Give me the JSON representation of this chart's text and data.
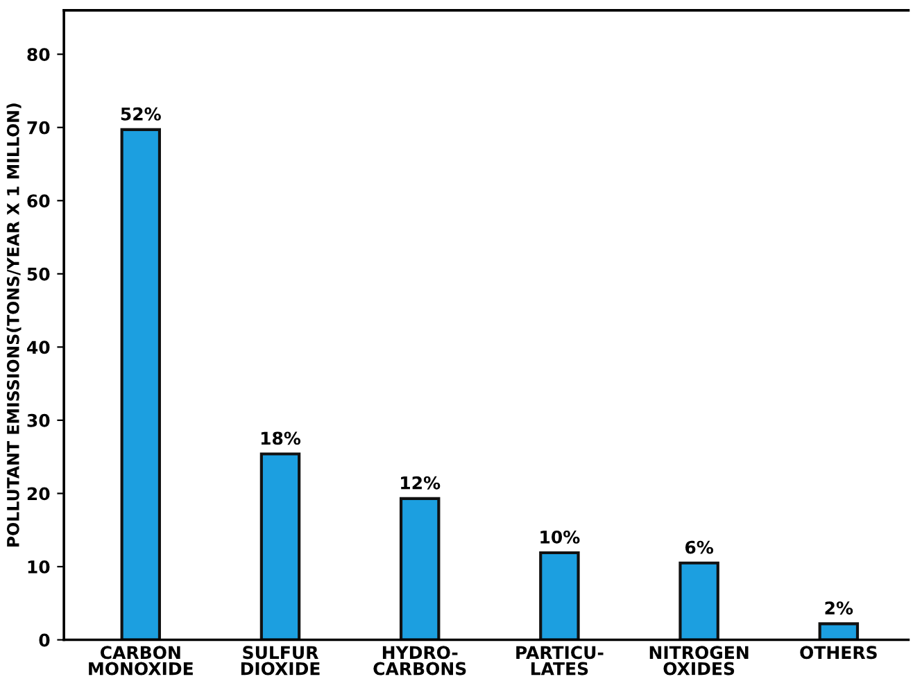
{
  "chart_data": {
    "type": "bar",
    "ylabel": "POLLUTANT EMISSIONS(TONS/YEAR X 1 MILLON)",
    "categories": [
      "CARBON\nMONOXIDE",
      "SULFUR\nDIOXIDE",
      "HYDRO-\nCARBONS",
      "PARTICU-\nLATES",
      "NITROGEN\nOXIDES",
      "OTHERS"
    ],
    "values": [
      69.7,
      25.4,
      19.3,
      11.9,
      10.5,
      2.2
    ],
    "annotations": [
      {
        "text": "52%",
        "x": "CARBON\nMONOXIDE",
        "y": 69.7
      },
      {
        "text": "18%",
        "x": "SULFUR\nDIOXIDE",
        "y": 25.4
      },
      {
        "text": "12%",
        "x": "HYDRO-\nCARBONS",
        "y": 19.3
      },
      {
        "text": "10%",
        "x": "PARTICU-\nLATES",
        "y": 11.9
      },
      {
        "text": "6%",
        "x": "NITROGEN\nOXIDES",
        "y": 10.5
      },
      {
        "text": "2%",
        "x": "OTHERS",
        "y": 2.2
      }
    ],
    "color": "#1c9fe0",
    "ylim": [
      0,
      86
    ],
    "yticks": [
      0,
      10,
      20,
      30,
      40,
      50,
      60,
      70,
      80
    ],
    "grid": false,
    "legend": false
  }
}
